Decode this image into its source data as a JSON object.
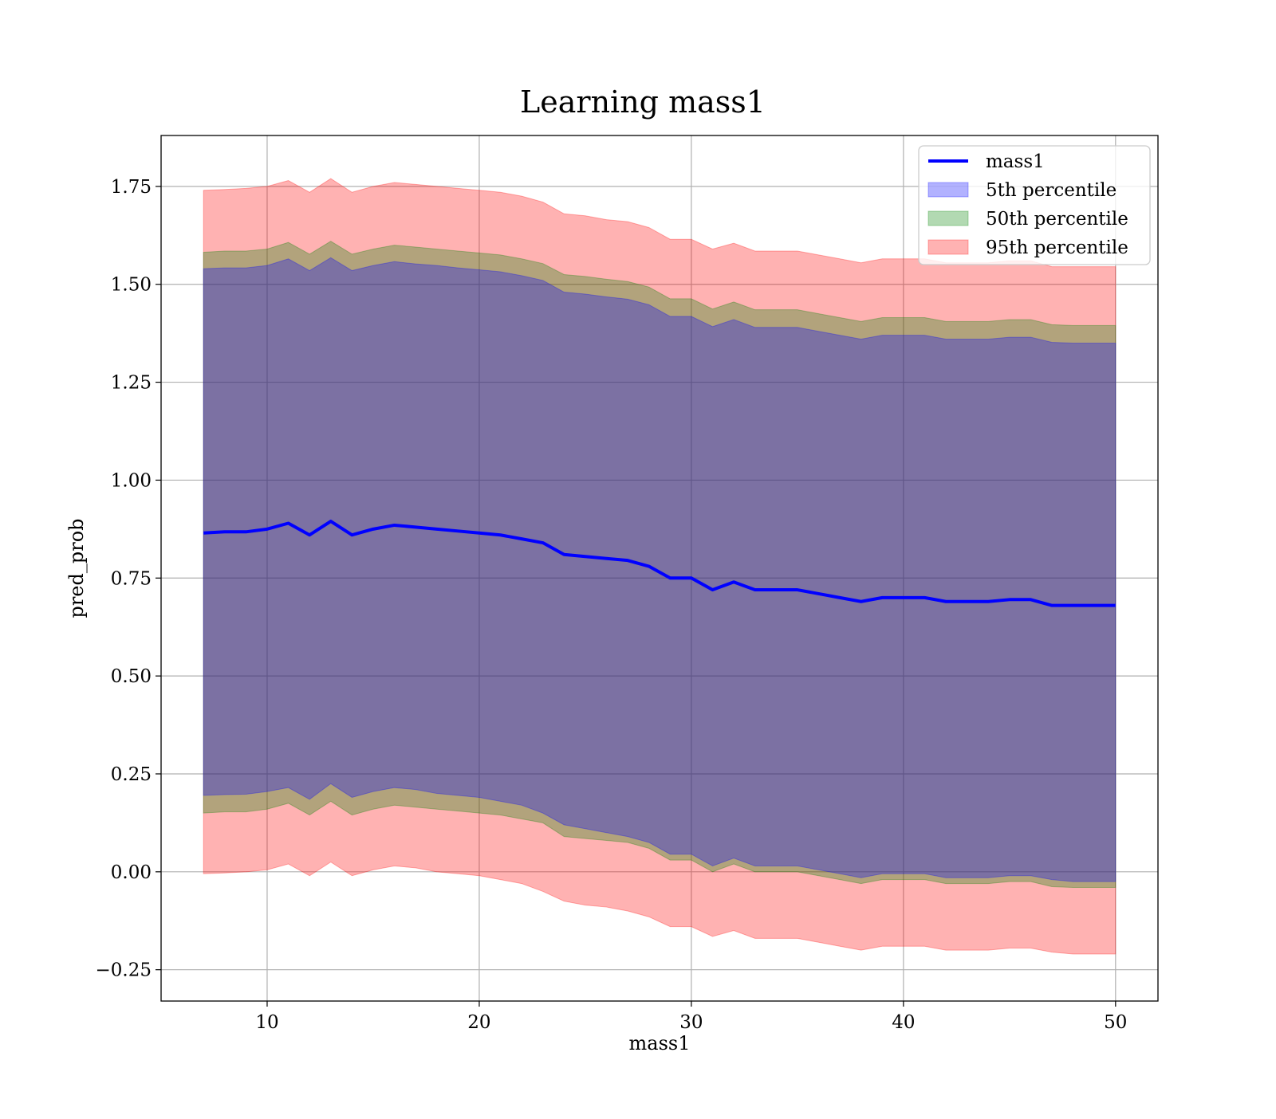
{
  "chart_data": {
    "type": "area",
    "title": "Learning mass1",
    "xlabel": "mass1",
    "ylabel": "pred_prob",
    "xlim": [
      5,
      52
    ],
    "ylim": [
      -0.33,
      1.88
    ],
    "xticks": [
      10,
      20,
      30,
      40,
      50
    ],
    "xtick_labels": [
      "10",
      "20",
      "30",
      "40",
      "50"
    ],
    "yticks": [
      -0.25,
      0.0,
      0.25,
      0.5,
      0.75,
      1.0,
      1.25,
      1.5,
      1.75
    ],
    "ytick_labels": [
      "−0.25",
      "0.00",
      "0.25",
      "0.50",
      "0.75",
      "1.00",
      "1.25",
      "1.50",
      "1.75"
    ],
    "grid": true,
    "legend_position": "top-right",
    "line": {
      "name": "mass1",
      "color": "#0000ff",
      "x": [
        7,
        8,
        9,
        10,
        11,
        12,
        13,
        14,
        15,
        16,
        17,
        18,
        19,
        20,
        21,
        22,
        23,
        24,
        25,
        26,
        27,
        28,
        29,
        30,
        31,
        32,
        33,
        34,
        35,
        36,
        37,
        38,
        39,
        40,
        41,
        42,
        43,
        44,
        45,
        46,
        47,
        48,
        49,
        50
      ],
      "y": [
        0.865,
        0.868,
        0.868,
        0.875,
        0.89,
        0.86,
        0.895,
        0.86,
        0.875,
        0.885,
        0.88,
        0.875,
        0.87,
        0.865,
        0.86,
        0.85,
        0.84,
        0.81,
        0.805,
        0.8,
        0.795,
        0.78,
        0.75,
        0.75,
        0.72,
        0.74,
        0.72,
        0.72,
        0.72,
        0.71,
        0.7,
        0.69,
        0.7,
        0.7,
        0.7,
        0.69,
        0.69,
        0.69,
        0.695,
        0.695,
        0.68,
        0.68,
        0.68,
        0.68
      ]
    },
    "bands": [
      {
        "name": "5th percentile",
        "color": "#0000ff",
        "x": [
          7,
          8,
          9,
          10,
          11,
          12,
          13,
          14,
          15,
          16,
          17,
          18,
          19,
          20,
          21,
          22,
          23,
          24,
          25,
          26,
          27,
          28,
          29,
          30,
          31,
          32,
          33,
          34,
          35,
          36,
          37,
          38,
          39,
          40,
          41,
          42,
          43,
          44,
          45,
          46,
          47,
          48,
          49,
          50
        ],
        "lower": [
          0.195,
          0.197,
          0.198,
          0.205,
          0.215,
          0.185,
          0.225,
          0.19,
          0.205,
          0.215,
          0.21,
          0.2,
          0.195,
          0.19,
          0.18,
          0.17,
          0.15,
          0.12,
          0.11,
          0.1,
          0.09,
          0.075,
          0.045,
          0.045,
          0.015,
          0.035,
          0.015,
          0.015,
          0.015,
          0.005,
          -0.005,
          -0.015,
          -0.005,
          -0.005,
          -0.005,
          -0.015,
          -0.015,
          -0.015,
          -0.01,
          -0.01,
          -0.02,
          -0.025,
          -0.025,
          -0.025
        ],
        "upper": [
          1.54,
          1.542,
          1.542,
          1.548,
          1.565,
          1.535,
          1.568,
          1.535,
          1.548,
          1.558,
          1.552,
          1.548,
          1.542,
          1.537,
          1.532,
          1.522,
          1.51,
          1.48,
          1.475,
          1.468,
          1.462,
          1.448,
          1.418,
          1.418,
          1.392,
          1.41,
          1.39,
          1.39,
          1.39,
          1.38,
          1.37,
          1.36,
          1.37,
          1.37,
          1.37,
          1.36,
          1.36,
          1.36,
          1.365,
          1.365,
          1.352,
          1.35,
          1.35,
          1.35
        ]
      },
      {
        "name": "50th percentile",
        "color": "#008000",
        "x": [
          7,
          8,
          9,
          10,
          11,
          12,
          13,
          14,
          15,
          16,
          17,
          18,
          19,
          20,
          21,
          22,
          23,
          24,
          25,
          26,
          27,
          28,
          29,
          30,
          31,
          32,
          33,
          34,
          35,
          36,
          37,
          38,
          39,
          40,
          41,
          42,
          43,
          44,
          45,
          46,
          47,
          48,
          49,
          50
        ],
        "lower": [
          0.15,
          0.153,
          0.153,
          0.16,
          0.175,
          0.145,
          0.18,
          0.145,
          0.16,
          0.17,
          0.165,
          0.16,
          0.155,
          0.15,
          0.145,
          0.135,
          0.125,
          0.09,
          0.085,
          0.08,
          0.075,
          0.06,
          0.03,
          0.03,
          0.0,
          0.02,
          0.0,
          0.0,
          0.0,
          -0.01,
          -0.02,
          -0.03,
          -0.02,
          -0.02,
          -0.02,
          -0.03,
          -0.03,
          -0.03,
          -0.025,
          -0.025,
          -0.038,
          -0.04,
          -0.04,
          -0.04
        ],
        "upper": [
          1.582,
          1.585,
          1.585,
          1.59,
          1.607,
          1.577,
          1.61,
          1.577,
          1.59,
          1.6,
          1.595,
          1.59,
          1.585,
          1.58,
          1.575,
          1.565,
          1.553,
          1.525,
          1.52,
          1.513,
          1.507,
          1.493,
          1.463,
          1.463,
          1.437,
          1.455,
          1.435,
          1.435,
          1.435,
          1.425,
          1.415,
          1.405,
          1.415,
          1.415,
          1.415,
          1.405,
          1.405,
          1.405,
          1.41,
          1.41,
          1.397,
          1.395,
          1.395,
          1.395
        ]
      },
      {
        "name": "95th percentile",
        "color": "#ff0000",
        "x": [
          7,
          8,
          9,
          10,
          11,
          12,
          13,
          14,
          15,
          16,
          17,
          18,
          19,
          20,
          21,
          22,
          23,
          24,
          25,
          26,
          27,
          28,
          29,
          30,
          31,
          32,
          33,
          34,
          35,
          36,
          37,
          38,
          39,
          40,
          41,
          42,
          43,
          44,
          45,
          46,
          47,
          48,
          49,
          50
        ],
        "lower": [
          -0.005,
          -0.003,
          0.0,
          0.005,
          0.02,
          -0.01,
          0.025,
          -0.01,
          0.005,
          0.015,
          0.01,
          0.0,
          -0.005,
          -0.01,
          -0.02,
          -0.03,
          -0.05,
          -0.075,
          -0.085,
          -0.09,
          -0.1,
          -0.115,
          -0.14,
          -0.14,
          -0.165,
          -0.15,
          -0.17,
          -0.17,
          -0.17,
          -0.18,
          -0.19,
          -0.2,
          -0.19,
          -0.19,
          -0.19,
          -0.2,
          -0.2,
          -0.2,
          -0.195,
          -0.195,
          -0.205,
          -0.21,
          -0.21,
          -0.21
        ],
        "upper": [
          1.74,
          1.742,
          1.745,
          1.75,
          1.765,
          1.735,
          1.77,
          1.735,
          1.75,
          1.76,
          1.755,
          1.75,
          1.745,
          1.74,
          1.735,
          1.725,
          1.71,
          1.68,
          1.675,
          1.665,
          1.66,
          1.645,
          1.615,
          1.615,
          1.59,
          1.605,
          1.585,
          1.585,
          1.585,
          1.575,
          1.565,
          1.555,
          1.565,
          1.565,
          1.565,
          1.555,
          1.555,
          1.555,
          1.56,
          1.56,
          1.545,
          1.545,
          1.545,
          1.545
        ]
      }
    ]
  }
}
